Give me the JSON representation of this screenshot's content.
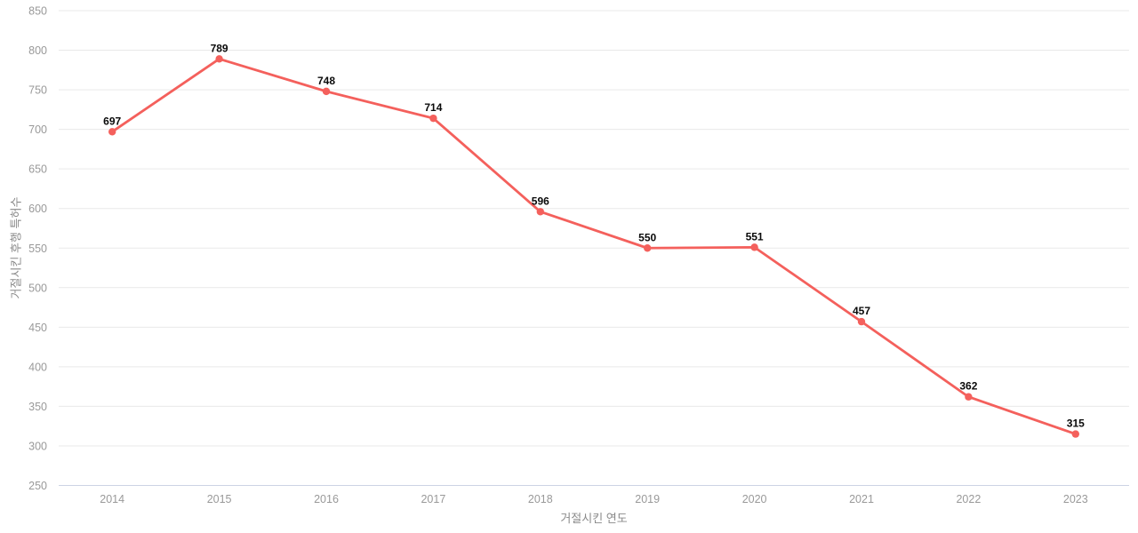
{
  "chart_data": {
    "type": "line",
    "categories": [
      "2014",
      "2015",
      "2016",
      "2017",
      "2018",
      "2019",
      "2020",
      "2021",
      "2022",
      "2023"
    ],
    "values": [
      697,
      789,
      748,
      714,
      596,
      550,
      551,
      457,
      362,
      315
    ],
    "point_labels": [
      "697",
      "789",
      "748",
      "714",
      "596",
      "550",
      "551",
      "457",
      "362",
      "315"
    ],
    "title": "",
    "xlabel": "거절시킨 연도",
    "ylabel": "거절시킨 후행 특허수",
    "ylim": [
      250,
      850
    ],
    "ytick_step": 50,
    "ytick_labels": [
      "250",
      "300",
      "350",
      "400",
      "450",
      "500",
      "550",
      "600",
      "650",
      "700",
      "750",
      "800",
      "850"
    ],
    "grid": true,
    "legend_position": "none",
    "colors": {
      "line": "#f4605c",
      "point": "#f4605c",
      "grid_line": "#e9e9e9",
      "axis_line": "#cdd3e4",
      "tick_label": "#999999",
      "axis_title": "#8a8a8a",
      "data_label": "#0a0a0a",
      "background": "#ffffff"
    }
  }
}
